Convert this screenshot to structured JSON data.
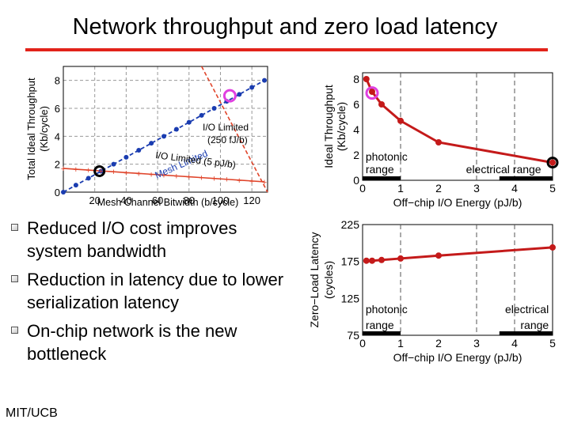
{
  "title": "Network throughput and zero load latency",
  "bullets": [
    "Reduced I/O cost improves system bandwidth",
    "Reduction in latency due to lower serialization latency",
    "On-chip network is the new bottleneck"
  ],
  "footer": "MIT/UCB",
  "colors": {
    "title_rule": "#e2231a",
    "mesh_line": "#1a3cb0",
    "io_line": "#e0442a",
    "series": "#c41a1a",
    "highlight": "#e040e0"
  },
  "chart_data": [
    {
      "type": "line",
      "xlabel": "Mesh Channel Bitwidth (b/cycle)",
      "ylabel": "Total Ideal Throughput (Kb/cycle)",
      "xlim": [
        0,
        130
      ],
      "ylim": [
        0,
        9
      ],
      "xticks": [
        20,
        40,
        60,
        80,
        100,
        120
      ],
      "yticks": [
        0,
        2,
        4,
        6,
        8
      ],
      "grid": true,
      "series": [
        {
          "label": "Mesh Limited",
          "x": [
            0,
            8,
            16,
            24,
            32,
            40,
            48,
            56,
            64,
            72,
            80,
            88,
            96,
            104,
            112,
            120,
            128
          ],
          "y": [
            0,
            0.5,
            1.0,
            1.5,
            2.0,
            2.5,
            3.0,
            3.5,
            4.0,
            4.5,
            5.0,
            5.5,
            6.0,
            6.5,
            7.0,
            7.5,
            8.0
          ]
        },
        {
          "label": "I/O Limited (250 fJ/b)",
          "x": [
            88,
            130
          ],
          "y": [
            9,
            0
          ]
        },
        {
          "label": "I/O Limited (5 pJ/b)",
          "x": [
            0,
            8,
            16,
            24,
            32,
            40,
            48,
            56,
            64,
            72,
            80,
            88,
            96,
            104,
            112,
            120,
            128
          ],
          "y": [
            1.7,
            1.64,
            1.58,
            1.52,
            1.46,
            1.4,
            1.34,
            1.28,
            1.22,
            1.16,
            1.1,
            1.04,
            0.98,
            0.92,
            0.86,
            0.8,
            0.74
          ]
        }
      ],
      "highlights": [
        {
          "x": 23,
          "y": 1.5
        },
        {
          "x": 106,
          "y": 6.9
        }
      ]
    },
    {
      "type": "line",
      "xlabel": "Off−chip I/O Energy (pJ/b)",
      "ylabel": "Ideal Throughput (Kb/cycle)",
      "xlim": [
        0,
        5
      ],
      "ylim": [
        0,
        8.5
      ],
      "xticks": [
        0,
        1,
        2,
        3,
        4,
        5
      ],
      "yticks": [
        0,
        2,
        4,
        6,
        8
      ],
      "range_labels": {
        "photonic": "photonic range",
        "electrical": "electrical range"
      },
      "series": [
        {
          "x": [
            0.1,
            0.25,
            0.5,
            1,
            2,
            5
          ],
          "y": [
            8.0,
            7.0,
            6.0,
            4.7,
            3.0,
            1.4
          ]
        }
      ],
      "highlights": [
        {
          "x": 0.25,
          "y": 6.9
        },
        {
          "x": 5,
          "y": 1.4
        }
      ]
    },
    {
      "type": "line",
      "xlabel": "Off−chip I/O Energy (pJ/b)",
      "ylabel": "Zero−Load Latency (cycles)",
      "xlim": [
        0,
        5
      ],
      "ylim": [
        75,
        225
      ],
      "xticks": [
        0,
        1,
        2,
        3,
        4,
        5
      ],
      "yticks": [
        75,
        125,
        175,
        225
      ],
      "range_labels": {
        "photonic": "photonic range",
        "electrical": "electrical range"
      },
      "series": [
        {
          "x": [
            0.1,
            0.25,
            0.5,
            1,
            2,
            5
          ],
          "y": [
            176,
            176,
            177,
            179,
            183,
            194
          ]
        }
      ]
    }
  ]
}
